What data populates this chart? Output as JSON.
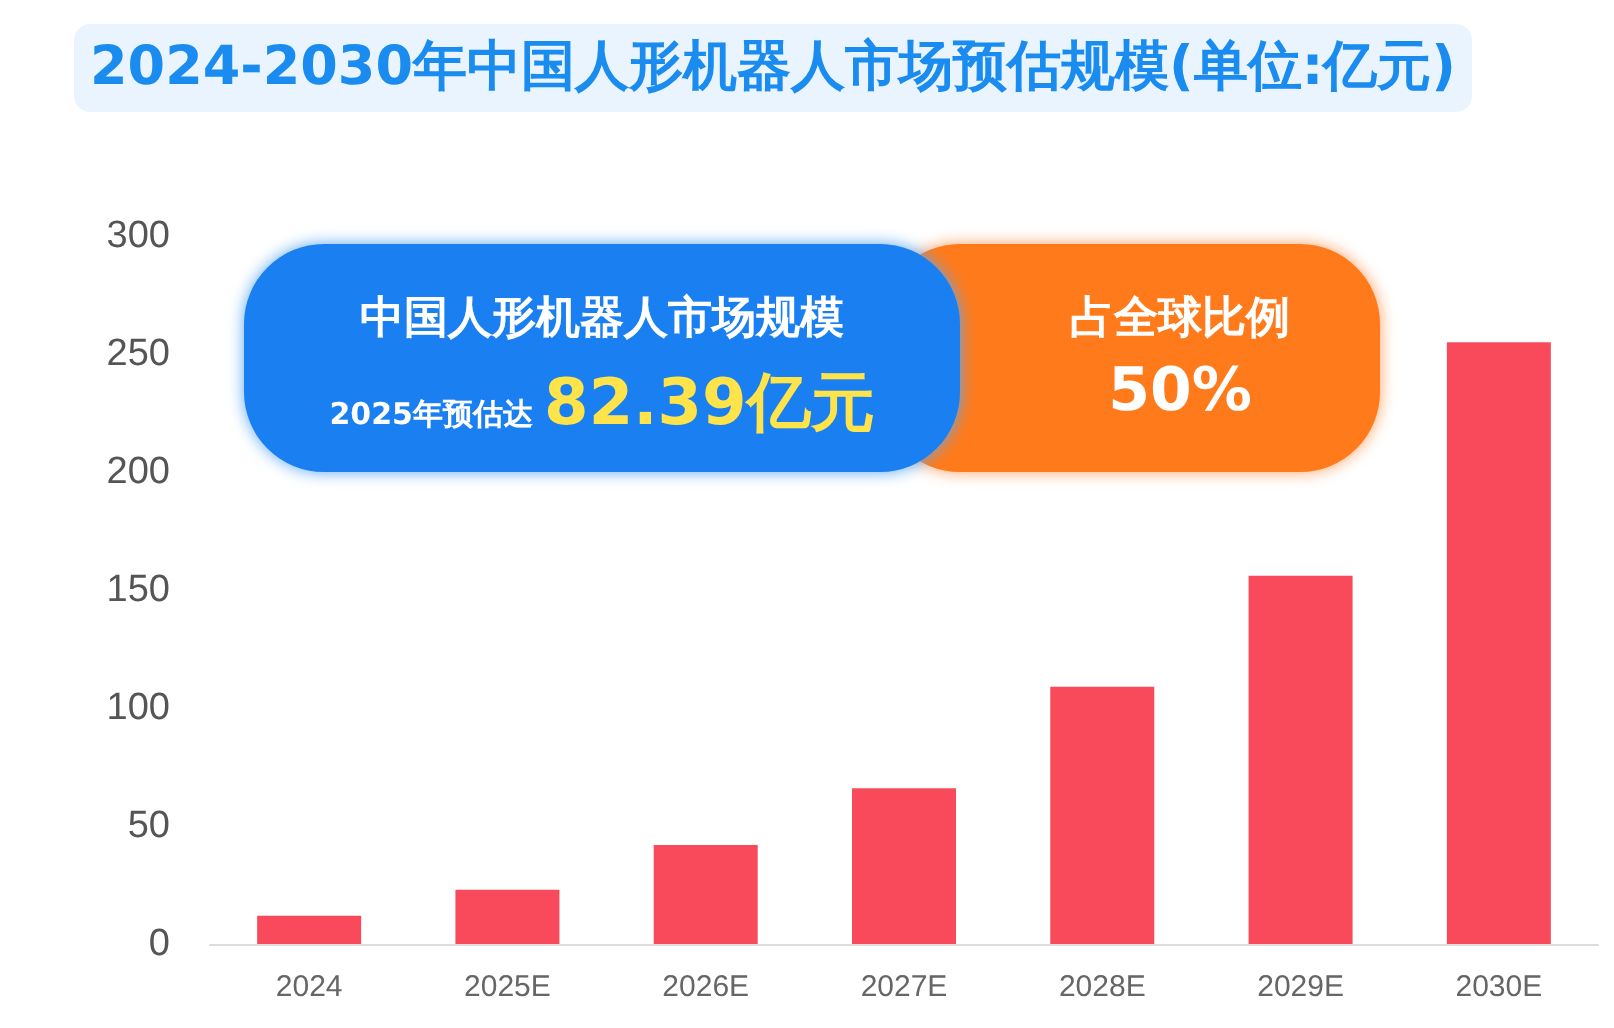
{
  "chart_data": {
    "type": "bar",
    "title": "2024-2030年中国人形机器人市场预估规模(单位:亿元)",
    "categories": [
      "2024",
      "2025E",
      "2026E",
      "2027E",
      "2028E",
      "2029E",
      "2030E"
    ],
    "values": [
      12,
      23,
      42,
      66,
      109,
      156,
      255
    ],
    "color": "#f94a5c",
    "ylim": [
      0,
      300
    ],
    "yticks": [
      0,
      50,
      100,
      150,
      200,
      250,
      300
    ],
    "grid": false,
    "annotations": [
      "中国人形机器人市场规模",
      "2025年预估达",
      "82.39亿元",
      "占全球比例",
      "50%"
    ]
  }
}
